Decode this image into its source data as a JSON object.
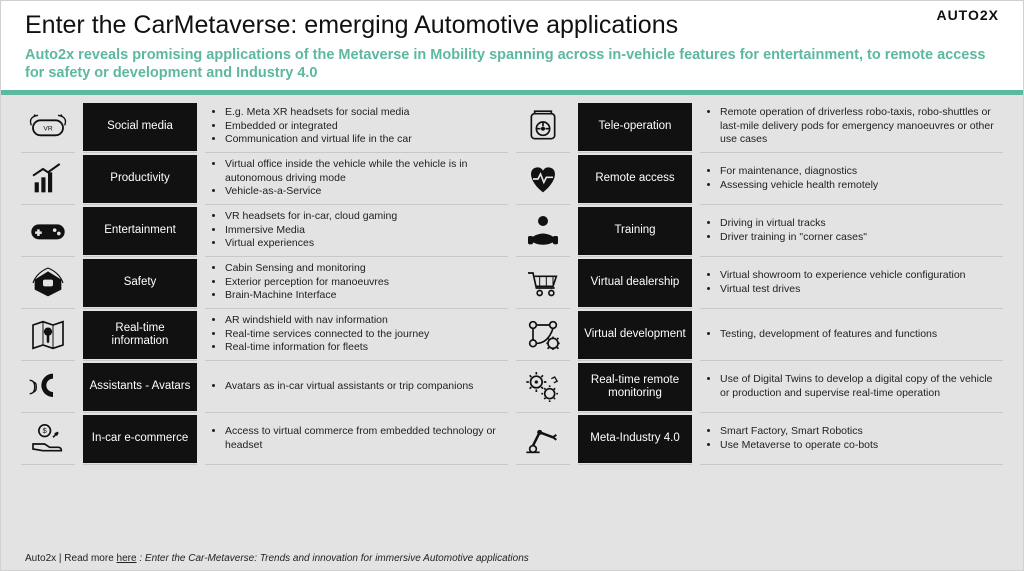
{
  "brand": "AUTO2X",
  "title": "Enter the CarMetaverse: emerging Automotive applications",
  "subtitle": "Auto2x reveals promising applications of the Metaverse in Mobility spanning across in-vehicle features for entertainment, to remote access for safety or development and Industry 4.0",
  "colors": {
    "accent": "#5cb8a0",
    "label_bg": "#111111",
    "label_fg": "#ffffff",
    "page_bg": "#e3e3e3",
    "header_bg": "#ffffff",
    "text": "#222222",
    "rule": "#c8c8c8"
  },
  "left": [
    {
      "icon": "vr-headset-icon",
      "label": "Social media",
      "bullets": [
        "E.g. Meta XR headsets for social media",
        "Embedded or integrated",
        "Communication and virtual life in the car"
      ]
    },
    {
      "icon": "growth-chart-icon",
      "label": "Productivity",
      "bullets": [
        "Virtual office inside the vehicle while the vehicle is in autonomous driving mode",
        "Vehicle-as-a-Service"
      ]
    },
    {
      "icon": "gamepad-icon",
      "label": "Entertainment",
      "bullets": [
        "VR headsets for in-car, cloud gaming",
        "Immersive Media",
        "Virtual experiences"
      ]
    },
    {
      "icon": "car-sensor-icon",
      "label": "Safety",
      "bullets": [
        "Cabin Sensing and monitoring",
        "Exterior perception for manoeuvres",
        "Brain-Machine Interface"
      ]
    },
    {
      "icon": "map-pin-icon",
      "label": "Real-time information",
      "bullets": [
        "AR windshield with nav information",
        "Real-time services connected to the journey",
        "Real-time information for fleets"
      ]
    },
    {
      "icon": "avatar-voice-icon",
      "label": "Assistants - Avatars",
      "bullets": [
        "Avatars as in-car virtual assistants or trip companions"
      ]
    },
    {
      "icon": "hand-coin-icon",
      "label": "In-car e-commerce",
      "bullets": [
        "Access to virtual commerce from embedded technology or headset"
      ]
    }
  ],
  "right": [
    {
      "icon": "steering-remote-icon",
      "label": "Tele-operation",
      "bullets": [
        "Remote operation of driverless robo-taxis, robo-shuttles or last-mile delivery pods for emergency manoeuvres or other use cases"
      ]
    },
    {
      "icon": "heart-pulse-icon",
      "label": "Remote access",
      "bullets": [
        "For maintenance, diagnostics",
        "Assessing vehicle health remotely"
      ]
    },
    {
      "icon": "driver-training-icon",
      "label": "Training",
      "bullets": [
        "Driving in virtual tracks",
        "Driver training in \"corner cases\""
      ]
    },
    {
      "icon": "shopping-cart-icon",
      "label": "Virtual dealership",
      "bullets": [
        "Virtual showroom to experience vehicle configuration",
        "Virtual test drives"
      ]
    },
    {
      "icon": "dev-pipeline-icon",
      "label": "Virtual development",
      "bullets": [
        "Testing, development of features and functions"
      ]
    },
    {
      "icon": "gears-monitor-icon",
      "label": "Real-time remote monitoring",
      "bullets": [
        "Use of Digital Twins to develop a digital copy of the vehicle or production and supervise real-time operation"
      ]
    },
    {
      "icon": "robot-arm-icon",
      "label": "Meta-Industry 4.0",
      "bullets": [
        "Smart Factory, Smart Robotics",
        "Use Metaverse to operate co-bots"
      ]
    }
  ],
  "footer": {
    "prefix": "Auto2x | Read more ",
    "link_text": "here",
    "suffix": " : Enter the Car-Metaverse: Trends and innovation for immersive Automotive applications"
  }
}
